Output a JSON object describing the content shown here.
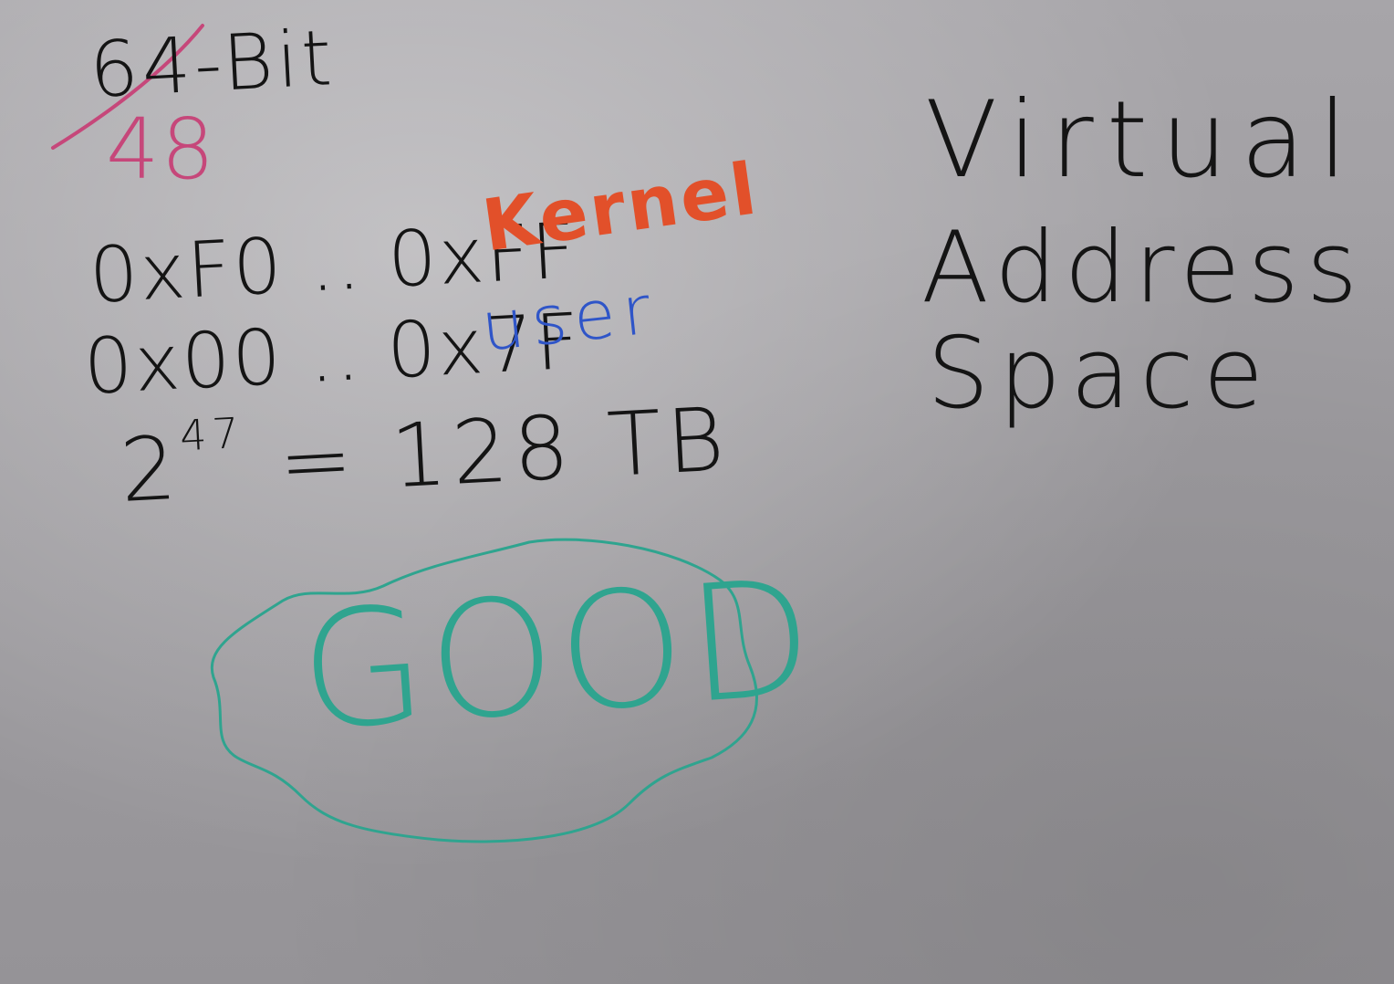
{
  "whiteboard": {
    "heading_crossed": "64-Bit",
    "heading_correction": "48",
    "kernel_range": "0xF0 .. 0xFF",
    "kernel_label": "Kernel",
    "user_range": "0x00 .. 0x7F",
    "user_label": "user",
    "equation_base": "2",
    "equation_exponent": "47",
    "equation_result": "= 128 TB",
    "good_word": "GOOD",
    "title_line1": "Virtual",
    "title_line2": "Address",
    "title_line3": "Space"
  },
  "colors": {
    "black_marker": "#141414",
    "pink_marker": "#c6477a",
    "red_marker": "#e2502a",
    "blue_marker": "#2f55c8",
    "teal_marker": "#2fa48f",
    "board": "#9e9ca0"
  }
}
